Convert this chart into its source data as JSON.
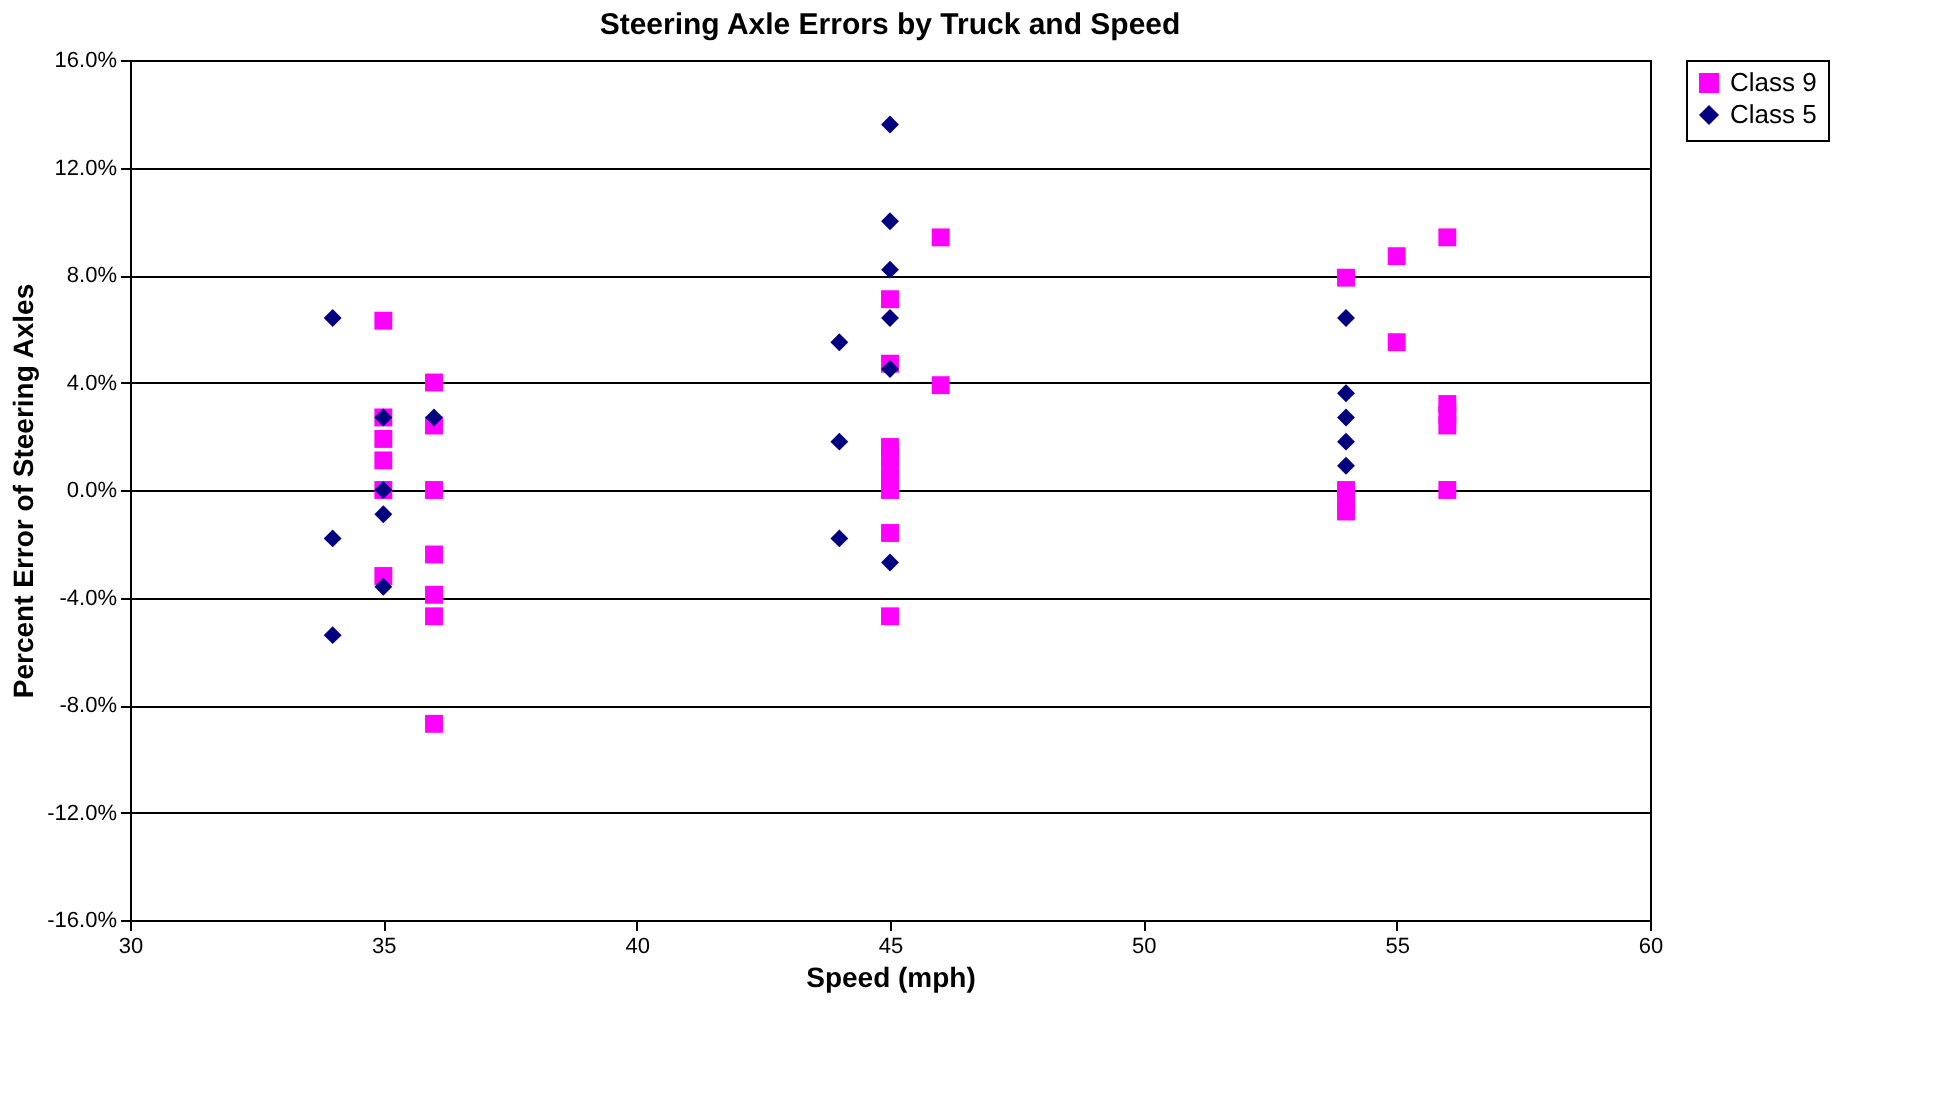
{
  "chart_data": {
    "type": "scatter",
    "title": "Steering Axle Errors by Truck and Speed",
    "xlabel": "Speed (mph)",
    "ylabel": "Percent Error of Steering Axles",
    "xlim": [
      30,
      60
    ],
    "xticks": [
      30,
      35,
      40,
      45,
      50,
      55,
      60
    ],
    "ylim": [
      -16,
      16
    ],
    "yticks": [
      {
        "value": -16,
        "label": "-16.0%"
      },
      {
        "value": -12,
        "label": "-12.0%"
      },
      {
        "value": -8,
        "label": "-8.0%"
      },
      {
        "value": -4,
        "label": "-4.0%"
      },
      {
        "value": 0,
        "label": "0.0%"
      },
      {
        "value": 4,
        "label": "4.0%"
      },
      {
        "value": 8,
        "label": "8.0%"
      },
      {
        "value": 12,
        "label": "12.0%"
      },
      {
        "value": 16,
        "label": "16.0%"
      }
    ],
    "grid": "y",
    "legend": "right",
    "series": [
      {
        "name": "Class 9",
        "color": "#ff00ff",
        "marker": "square",
        "x": [
          35,
          35,
          35,
          35,
          35,
          35,
          36,
          36,
          36,
          36,
          36,
          36,
          36,
          45,
          45,
          45,
          45,
          45,
          45,
          45,
          45,
          45,
          46,
          46,
          54,
          54,
          54,
          54,
          55,
          55,
          56,
          56,
          56,
          56,
          56
        ],
        "values": [
          6.3,
          2.7,
          1.9,
          1.1,
          0.0,
          -3.2,
          4.0,
          2.4,
          0.0,
          -2.4,
          -3.9,
          -4.7,
          -8.7,
          7.1,
          4.7,
          1.6,
          1.2,
          0.8,
          0.4,
          0.0,
          -1.6,
          -4.7,
          9.4,
          3.9,
          7.9,
          0.0,
          -0.4,
          -0.8,
          8.7,
          5.5,
          9.4,
          3.2,
          2.8,
          2.4,
          0.0
        ]
      },
      {
        "name": "Class 5",
        "color": "#000080",
        "marker": "diamond",
        "x": [
          34,
          34,
          34,
          35,
          35,
          35,
          35,
          36,
          44,
          44,
          44,
          45,
          45,
          45,
          45,
          45,
          45,
          54,
          54,
          54,
          54,
          54
        ],
        "values": [
          6.4,
          -1.8,
          -5.4,
          2.7,
          0.0,
          -0.9,
          -3.6,
          2.7,
          5.5,
          1.8,
          -1.8,
          13.6,
          10.0,
          8.2,
          6.4,
          4.5,
          -2.7,
          6.4,
          3.6,
          2.7,
          1.8,
          0.9
        ]
      }
    ]
  }
}
